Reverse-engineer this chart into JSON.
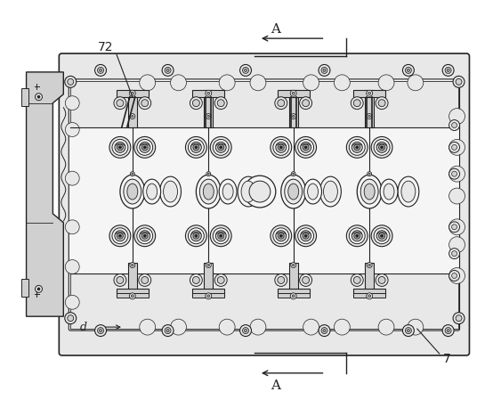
{
  "figure_width": 5.63,
  "figure_height": 4.49,
  "dpi": 100,
  "bg_color": "#ffffff",
  "lc": "#222222",
  "fill_light": "#e8e8e8",
  "fill_mid": "#d0d0d0",
  "fill_dark": "#aaaaaa",
  "fill_white": "#f5f5f5",
  "labels": {
    "A_top": "A",
    "A_bottom": "A",
    "label_72": "72",
    "label_d": "d",
    "label_7": "7"
  }
}
